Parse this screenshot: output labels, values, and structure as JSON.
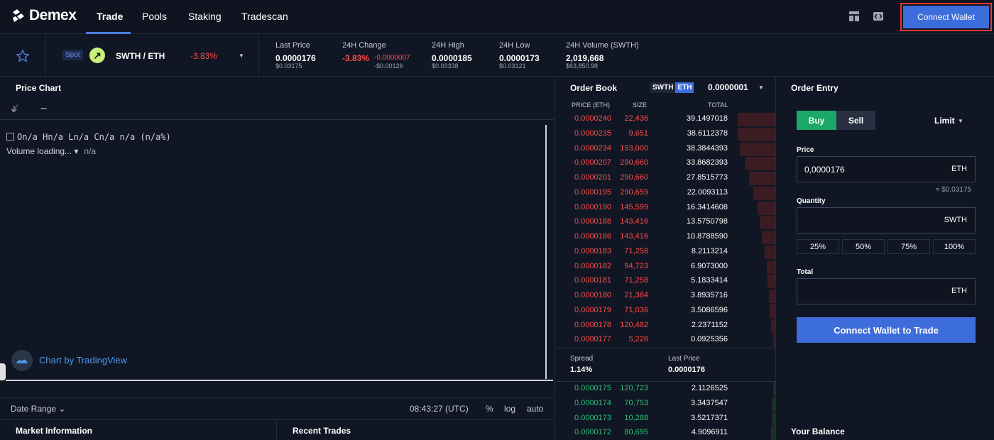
{
  "nav": {
    "logo": "Demex",
    "items": [
      "Trade",
      "Pools",
      "Staking",
      "Tradescan"
    ],
    "connect_wallet": "Connect Wallet",
    "icons": [
      "layout-icon",
      "code-icon"
    ]
  },
  "ticker": {
    "market_type": "Spot",
    "pair": "SWTH / ETH",
    "change": "-3.83%",
    "stats": [
      {
        "label": "Last Price",
        "value": "0.0000176",
        "sub": "$0.03175"
      },
      {
        "label": "24H Change",
        "value": "-3.83%",
        "value2": "-0.0000007",
        "sub": "-$0.00126"
      },
      {
        "label": "24H High",
        "value": "0.0000185",
        "sub": "$0.03338"
      },
      {
        "label": "24H Low",
        "value": "0.0000173",
        "sub": "$0.03121"
      },
      {
        "label": "24H Volume (SWTH)",
        "value": "2,019,668",
        "sub": "$63,850.98"
      }
    ]
  },
  "chart": {
    "title": "Price Chart",
    "ohlc": "On/a Hn/a Ln/a Cn/a n/a (n/a%)",
    "volume": "Volume loading...",
    "volume_value": "n/a",
    "attribution": "Chart by TradingView",
    "date_range": "Date Range",
    "time": "08:43:27 (UTC)",
    "options": [
      "%",
      "log",
      "auto"
    ]
  },
  "order_book": {
    "title": "Order Book",
    "base": "SWTH",
    "quote": "ETH",
    "tick": "0.0000001",
    "headers": [
      "PRICE (ETH)",
      "SIZE",
      "TOTAL"
    ],
    "asks": [
      {
        "price": "0.0000240",
        "size": "22,436",
        "total": "39.1497018",
        "depth": 0.17
      },
      {
        "price": "0.0000235",
        "size": "9,651",
        "total": "38.6112378",
        "depth": 0.17
      },
      {
        "price": "0.0000234",
        "size": "193,000",
        "total": "38.3844393",
        "depth": 0.16
      },
      {
        "price": "0.0000207",
        "size": "290,660",
        "total": "33.8682393",
        "depth": 0.14
      },
      {
        "price": "0.0000201",
        "size": "290,660",
        "total": "27.8515773",
        "depth": 0.12
      },
      {
        "price": "0.0000195",
        "size": "290,659",
        "total": "22.0093113",
        "depth": 0.1
      },
      {
        "price": "0.0000190",
        "size": "145,599",
        "total": "16.3414608",
        "depth": 0.08
      },
      {
        "price": "0.0000188",
        "size": "143,416",
        "total": "13.5750798",
        "depth": 0.07
      },
      {
        "price": "0.0000186",
        "size": "143,416",
        "total": "10.8788590",
        "depth": 0.06
      },
      {
        "price": "0.0000183",
        "size": "71,258",
        "total": "8.2113214",
        "depth": 0.05
      },
      {
        "price": "0.0000182",
        "size": "94,723",
        "total": "6.9073000",
        "depth": 0.04
      },
      {
        "price": "0.0000181",
        "size": "71,258",
        "total": "5.1833414",
        "depth": 0.035
      },
      {
        "price": "0.0000180",
        "size": "21,384",
        "total": "3.8935716",
        "depth": 0.03
      },
      {
        "price": "0.0000179",
        "size": "71,036",
        "total": "3.5086596",
        "depth": 0.025
      },
      {
        "price": "0.0000178",
        "size": "120,482",
        "total": "2.2371152",
        "depth": 0.02
      },
      {
        "price": "0.0000177",
        "size": "5,228",
        "total": "0.0925356",
        "depth": 0.01
      }
    ],
    "spread_label": "Spread",
    "spread": "1.14%",
    "last_price_label": "Last Price",
    "last_price": "0.0000176",
    "bids": [
      {
        "price": "0.0000175",
        "size": "120,723",
        "total": "2.1126525",
        "depth": 0.01
      },
      {
        "price": "0.0000174",
        "size": "70,753",
        "total": "3.3437547",
        "depth": 0.015
      },
      {
        "price": "0.0000173",
        "size": "10,288",
        "total": "3.5217371",
        "depth": 0.015
      },
      {
        "price": "0.0000172",
        "size": "80,695",
        "total": "4.9096911",
        "depth": 0.02
      }
    ]
  },
  "order_entry": {
    "title": "Order Entry",
    "buy": "Buy",
    "sell": "Sell",
    "order_type": "Limit",
    "price_label": "Price",
    "price_value": "0,0000176",
    "price_unit": "ETH",
    "price_usd": "≈ $0.03175",
    "quantity_label": "Quantity",
    "quantity_unit": "SWTH",
    "percents": [
      "25%",
      "50%",
      "75%",
      "100%"
    ],
    "total_label": "Total",
    "total_unit": "ETH",
    "connect": "Connect Wallet to Trade"
  },
  "bottom": {
    "market_info": "Market Information",
    "recent_trades": "Recent Trades",
    "your_balance": "Your Balance"
  },
  "colors": {
    "background": "#101623",
    "accent": "#3d6cdb",
    "buy": "#1ca867",
    "ask_text": "#ff4d4d",
    "bid_text": "#2ec27e",
    "highlight_border": "#e53935"
  }
}
